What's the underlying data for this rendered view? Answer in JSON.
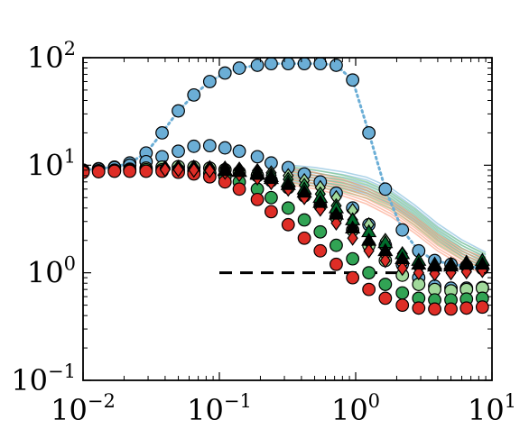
{
  "chart_data": {
    "type": "scatter",
    "xscale": "log",
    "yscale": "log",
    "xlim": [
      0.01,
      10
    ],
    "ylim": [
      0.1,
      100
    ],
    "xticks": [
      {
        "value": 0.01,
        "base": "10",
        "exp": "−2"
      },
      {
        "value": 0.1,
        "base": "10",
        "exp": "−1"
      },
      {
        "value": 1,
        "base": "10",
        "exp": "0"
      },
      {
        "value": 10,
        "base": "10",
        "exp": "1"
      }
    ],
    "yticks": [
      {
        "value": 0.1,
        "base": "10",
        "exp": "−1"
      },
      {
        "value": 1,
        "base": "10",
        "exp": "0"
      },
      {
        "value": 10,
        "base": "10",
        "exp": "1"
      },
      {
        "value": 100,
        "base": "10",
        "exp": "2"
      }
    ],
    "grid": false,
    "title": "",
    "xlabel": "",
    "ylabel": "",
    "reference_line": {
      "style": "dashed",
      "color": "#000000",
      "x": [
        0.1,
        2.0
      ],
      "y": 1.0
    },
    "series": [
      {
        "marker": "circle",
        "color": "#6baed6",
        "line": "dotted",
        "x": [
          0.01,
          0.013,
          0.017,
          0.022,
          0.029,
          0.038,
          0.05,
          0.065,
          0.085,
          0.11,
          0.14,
          0.19,
          0.24,
          0.32,
          0.42,
          0.55,
          0.72,
          0.95,
          1.25,
          1.65,
          2.2,
          2.9,
          3.8,
          5,
          6.5,
          8.5
        ],
        "y": [
          9,
          9.3,
          9.6,
          10.5,
          13,
          20,
          32,
          45,
          60,
          72,
          80,
          85,
          88,
          88,
          88,
          88,
          85,
          62,
          20,
          6,
          2.5,
          1.6,
          1.3,
          1.2,
          1.15,
          1.1
        ]
      },
      {
        "marker": "circle",
        "color": "#6baed6",
        "line": "none",
        "x": [
          0.01,
          0.013,
          0.017,
          0.022,
          0.029,
          0.038,
          0.05,
          0.065,
          0.085,
          0.11,
          0.14,
          0.19,
          0.24,
          0.32,
          0.42,
          0.55,
          0.72,
          0.95,
          1.25,
          1.65,
          2.2,
          2.9,
          3.8,
          5,
          6.5,
          8.5
        ],
        "y": [
          9,
          9.2,
          9.5,
          10,
          10.8,
          12,
          13.5,
          15,
          15.2,
          14.5,
          13.5,
          12,
          10.5,
          9.5,
          8.3,
          7,
          5.5,
          4,
          2.8,
          1.8,
          1.2,
          0.9,
          0.75,
          0.72,
          0.72,
          0.73
        ]
      },
      {
        "marker": "circle",
        "color": "#a1d99b",
        "line": "none",
        "x": [
          0.01,
          0.013,
          0.017,
          0.022,
          0.029,
          0.038,
          0.05,
          0.065,
          0.085,
          0.11,
          0.14,
          0.19,
          0.24,
          0.32,
          0.42,
          0.55,
          0.72,
          0.95,
          1.25,
          1.65,
          2.2,
          2.9,
          3.8,
          5,
          6.5,
          8.5
        ],
        "y": [
          8.8,
          8.9,
          9,
          9.2,
          9.4,
          9.6,
          9.7,
          9.6,
          9.4,
          9.1,
          8.6,
          8,
          7.2,
          6.2,
          5.2,
          4.2,
          3.3,
          2.5,
          1.8,
          1.3,
          0.95,
          0.78,
          0.7,
          0.68,
          0.7,
          0.72
        ]
      },
      {
        "marker": "circle",
        "color": "#31a354",
        "line": "none",
        "x": [
          0.01,
          0.013,
          0.017,
          0.022,
          0.029,
          0.038,
          0.05,
          0.065,
          0.085,
          0.11,
          0.14,
          0.19,
          0.24,
          0.32,
          0.42,
          0.55,
          0.72,
          0.95,
          1.25,
          1.65,
          2.2,
          2.9,
          3.8,
          5,
          6.5,
          8.5
        ],
        "y": [
          8.7,
          8.8,
          8.9,
          9,
          9.1,
          9.1,
          9,
          8.8,
          8.4,
          7.8,
          7,
          6,
          5,
          4,
          3.1,
          2.4,
          1.8,
          1.35,
          1,
          0.78,
          0.65,
          0.58,
          0.56,
          0.56,
          0.57,
          0.58
        ]
      },
      {
        "marker": "circle",
        "color": "#de2d26",
        "line": "none",
        "x": [
          0.01,
          0.013,
          0.017,
          0.022,
          0.029,
          0.038,
          0.05,
          0.065,
          0.085,
          0.11,
          0.14,
          0.19,
          0.24,
          0.32,
          0.42,
          0.55,
          0.72,
          0.95,
          1.25,
          1.65,
          2.2,
          2.9,
          3.8,
          5,
          6.5,
          8.5
        ],
        "y": [
          8.6,
          8.7,
          8.8,
          8.8,
          8.8,
          8.8,
          8.6,
          8.3,
          7.8,
          7,
          6,
          4.8,
          3.7,
          2.8,
          2.1,
          1.6,
          1.2,
          0.9,
          0.7,
          0.58,
          0.5,
          0.47,
          0.46,
          0.46,
          0.47,
          0.48
        ]
      },
      {
        "marker": "diamond",
        "color": "#a1d99b",
        "line": "none",
        "x": [
          0.04,
          0.05,
          0.065,
          0.085,
          0.11,
          0.14,
          0.19,
          0.24,
          0.32,
          0.42,
          0.55,
          0.72,
          0.95,
          1.25,
          1.65,
          2.2,
          2.9,
          3.8,
          5,
          6.5,
          8.5
        ],
        "y": [
          9.5,
          9.6,
          9.6,
          9.5,
          9.4,
          9.2,
          8.9,
          8.5,
          8,
          7.2,
          6.2,
          5,
          3.8,
          2.8,
          2,
          1.5,
          1.25,
          1.15,
          1.1,
          1.1,
          1.1
        ]
      },
      {
        "marker": "diamond",
        "color": "#31a354",
        "line": "none",
        "x": [
          0.04,
          0.05,
          0.065,
          0.085,
          0.11,
          0.14,
          0.19,
          0.24,
          0.32,
          0.42,
          0.55,
          0.72,
          0.95,
          1.25,
          1.65,
          2.2,
          2.9,
          3.8,
          5,
          6.5,
          8.5
        ],
        "y": [
          9.3,
          9.3,
          9.3,
          9.2,
          9.1,
          8.9,
          8.6,
          8.1,
          7.4,
          6.5,
          5.4,
          4.2,
          3.1,
          2.3,
          1.7,
          1.35,
          1.2,
          1.15,
          1.15,
          1.2,
          1.25
        ]
      },
      {
        "marker": "diamond",
        "color": "#fb6a4a",
        "line": "none",
        "x": [
          0.04,
          0.05,
          0.065,
          0.085,
          0.11,
          0.14,
          0.19,
          0.24,
          0.32,
          0.42,
          0.55,
          0.72,
          0.95,
          1.25,
          1.65,
          2.2,
          2.9,
          3.8,
          5,
          6.5,
          8.5
        ],
        "y": [
          9.2,
          9.2,
          9.1,
          9,
          8.8,
          8.5,
          8.1,
          7.5,
          6.7,
          5.7,
          4.6,
          3.5,
          2.6,
          1.9,
          1.45,
          1.2,
          1.1,
          1.05,
          1.05,
          1.1,
          1.1
        ]
      },
      {
        "marker": "diamond",
        "color": "#de2d26",
        "line": "none",
        "x": [
          0.04,
          0.05,
          0.065,
          0.085,
          0.11,
          0.14,
          0.19,
          0.24,
          0.32,
          0.42,
          0.55,
          0.72,
          0.95,
          1.25,
          1.65,
          2.2,
          2.9,
          3.8,
          5,
          6.5,
          8.5
        ],
        "y": [
          9.1,
          9.1,
          9,
          8.9,
          8.6,
          8.2,
          7.6,
          6.9,
          6,
          5,
          3.9,
          2.9,
          2.1,
          1.6,
          1.3,
          1.1,
          1,
          0.98,
          1,
          1.02,
          1.05
        ]
      },
      {
        "marker": "triangle",
        "color": "#006d2c",
        "line": "none",
        "x": [
          0.11,
          0.14,
          0.19,
          0.24,
          0.32,
          0.42,
          0.55,
          0.72,
          0.95,
          1.25,
          1.65,
          2.2,
          2.9,
          3.8,
          5,
          6.5,
          8.5
        ],
        "y": [
          9,
          8.8,
          8.4,
          7.8,
          7,
          6,
          5,
          4,
          3.1,
          2.4,
          1.9,
          1.5,
          1.3,
          1.2,
          1.2,
          1.25,
          1.3
        ]
      },
      {
        "marker": "triangle",
        "color": "#000000",
        "line": "none",
        "x": [
          0.11,
          0.14,
          0.19,
          0.24,
          0.32,
          0.42,
          0.55,
          0.72,
          0.95,
          1.25,
          1.65,
          2.2,
          2.9,
          3.8,
          5,
          6.5,
          8.5
        ],
        "y": [
          8.9,
          8.7,
          8.2,
          7.5,
          6.6,
          5.6,
          4.5,
          3.5,
          2.6,
          2,
          1.6,
          1.35,
          1.2,
          1.15,
          1.15,
          1.2,
          1.2
        ]
      }
    ],
    "bands": [
      {
        "color": "#6baed6",
        "x": [
          0.3,
          0.5,
          0.8,
          1.2,
          1.8,
          2.7,
          4,
          6,
          9
        ],
        "y": [
          8.5,
          8,
          7.3,
          6.5,
          5.2,
          3.6,
          2.4,
          1.7,
          1.3
        ]
      },
      {
        "color": "#74c476",
        "x": [
          0.3,
          0.5,
          0.8,
          1.2,
          1.8,
          2.7,
          4,
          6,
          9
        ],
        "y": [
          8.3,
          7.6,
          6.8,
          5.9,
          4.7,
          3.3,
          2.2,
          1.6,
          1.25
        ]
      },
      {
        "color": "#fc9272",
        "x": [
          0.3,
          0.5,
          0.8,
          1.2,
          1.8,
          2.7,
          4,
          6,
          9
        ],
        "y": [
          8,
          7.2,
          6.2,
          5.2,
          4,
          2.8,
          1.9,
          1.4,
          1.15
        ]
      }
    ]
  }
}
